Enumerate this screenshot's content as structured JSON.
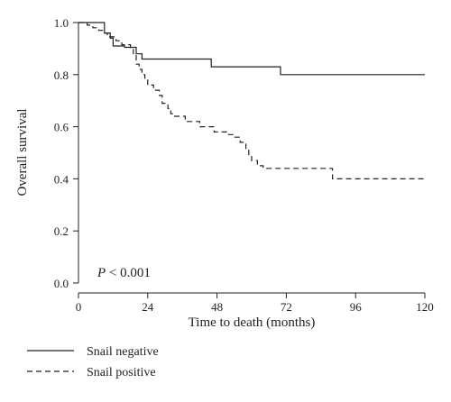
{
  "chart_data": {
    "type": "line",
    "xlabel": "Time to death (months)",
    "ylabel": "Overall survival",
    "xlim": [
      0,
      120
    ],
    "ylim": [
      0,
      1
    ],
    "xticks": [
      "0",
      "24",
      "48",
      "72",
      "96",
      "120"
    ],
    "yticks": [
      "0.0",
      "0.2",
      "0.4",
      "0.6",
      "0.8",
      "1.0"
    ],
    "grid": false,
    "legend_position": "bottom-left",
    "annotation": {
      "italic": "P",
      "rest": " < 0.001"
    },
    "series": [
      {
        "name": "Snail negative",
        "style": "solid",
        "color": "#222222",
        "x": [
          0,
          9,
          11,
          12,
          14,
          16,
          20,
          22,
          24,
          46,
          70,
          120
        ],
        "y": [
          1.0,
          0.96,
          0.94,
          0.91,
          0.91,
          0.905,
          0.88,
          0.86,
          0.86,
          0.83,
          0.8,
          0.8
        ]
      },
      {
        "name": "Snail positive",
        "style": "dashed",
        "color": "#222222",
        "x": [
          0,
          3,
          5,
          7,
          9,
          10,
          13,
          15,
          18,
          19,
          20,
          21,
          22,
          23,
          24,
          26,
          28,
          29,
          31,
          32,
          33,
          37,
          42,
          47,
          52,
          54,
          56,
          58,
          59,
          60,
          62,
          64,
          88,
          120
        ],
        "y": [
          1.0,
          0.99,
          0.98,
          0.97,
          0.96,
          0.945,
          0.93,
          0.915,
          0.9,
          0.88,
          0.84,
          0.82,
          0.8,
          0.78,
          0.76,
          0.74,
          0.72,
          0.69,
          0.67,
          0.65,
          0.64,
          0.62,
          0.6,
          0.58,
          0.57,
          0.56,
          0.54,
          0.51,
          0.49,
          0.47,
          0.45,
          0.44,
          0.4,
          0.4
        ]
      }
    ]
  }
}
